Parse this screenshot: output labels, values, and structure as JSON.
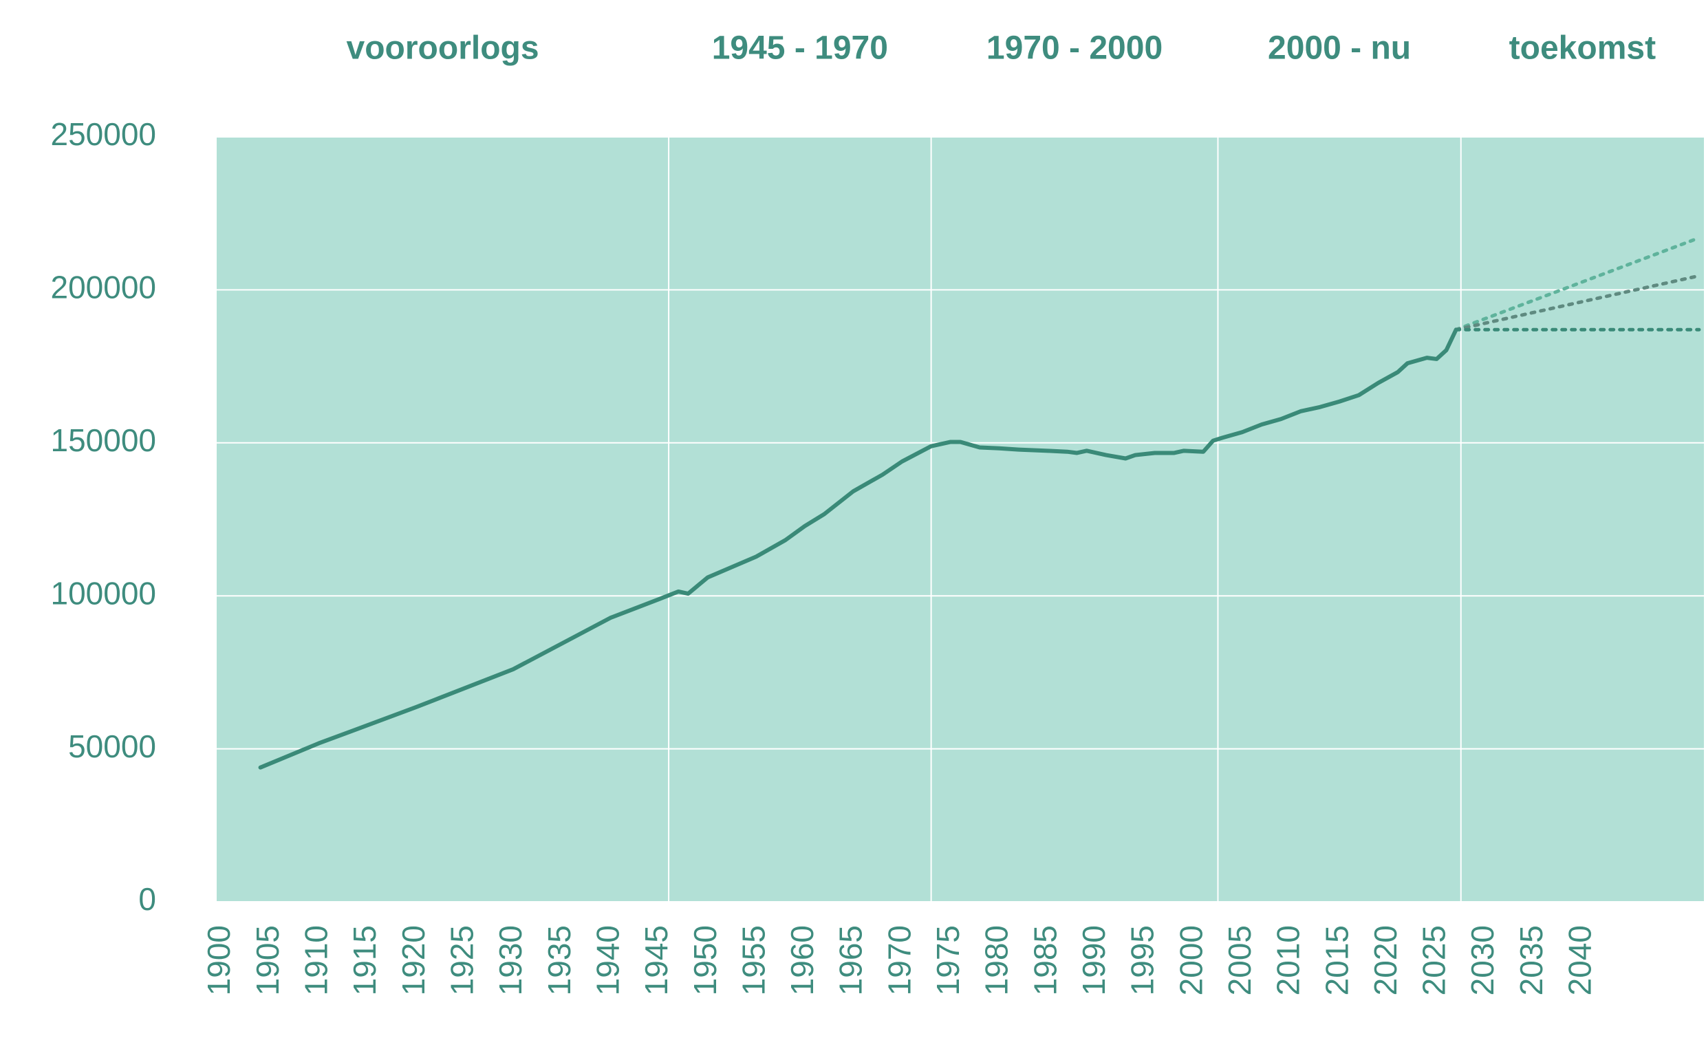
{
  "chart_data": {
    "type": "line",
    "periods": [
      "vooroorlogs",
      "1945 - 1970",
      "1970 - 2000",
      "2000 - nu",
      "toekomst"
    ],
    "period_lines": [
      1946,
      1973,
      2002.5,
      2027.5
    ],
    "xlim": [
      1899.5,
      2052.5
    ],
    "xticks": [
      1900,
      1905,
      1910,
      1915,
      1920,
      1925,
      1930,
      1935,
      1940,
      1945,
      1950,
      1955,
      1960,
      1965,
      1970,
      1975,
      1980,
      1985,
      1990,
      1995,
      2000,
      2005,
      2010,
      2015,
      2020,
      2025,
      2030,
      2035,
      2040
    ],
    "ylim": [
      0,
      250000
    ],
    "yticks": [
      0,
      50000,
      100000,
      150000,
      200000,
      250000
    ],
    "grid": true,
    "background": "#b2e0d6",
    "series": [
      {
        "color": "#3a8a78",
        "dashed": false,
        "x": [
          1904,
          1910,
          1920,
          1930,
          1940,
          1945,
          1947,
          1948,
          1950,
          1955,
          1958,
          1960,
          1962,
          1965,
          1968,
          1970,
          1973,
          1975,
          1976,
          1978,
          1980,
          1982,
          1985,
          1987,
          1988,
          1989,
          1991,
          1993,
          1994,
          1996,
          1998,
          1999,
          2001,
          2002,
          2003,
          2005,
          2007,
          2009,
          2011,
          2013,
          2015,
          2017,
          2019,
          2021,
          2022,
          2024,
          2025,
          2026,
          2027
        ],
        "values": [
          43900,
          51800,
          63600,
          76000,
          92800,
          98900,
          101400,
          100700,
          106000,
          112800,
          118200,
          122800,
          126700,
          134200,
          139600,
          143900,
          148900,
          150300,
          150300,
          148500,
          148200,
          147800,
          147400,
          147100,
          146700,
          147400,
          146000,
          144900,
          146000,
          146700,
          146700,
          147400,
          147100,
          150700,
          151700,
          153500,
          156000,
          157800,
          160300,
          161700,
          163500,
          165600,
          169600,
          173100,
          176000,
          177800,
          177400,
          180300,
          187000
        ]
      },
      {
        "color": "#5fb39c",
        "dashed": true,
        "x": [
          2027,
          2052
        ],
        "values": [
          187000,
          217000
        ]
      },
      {
        "color": "#5f8a80",
        "dashed": true,
        "x": [
          2027,
          2052
        ],
        "values": [
          187000,
          204600
        ]
      },
      {
        "color": "#3a8a78",
        "dashed": true,
        "x": [
          2027,
          2052
        ],
        "values": [
          187000,
          187000
        ]
      }
    ]
  }
}
